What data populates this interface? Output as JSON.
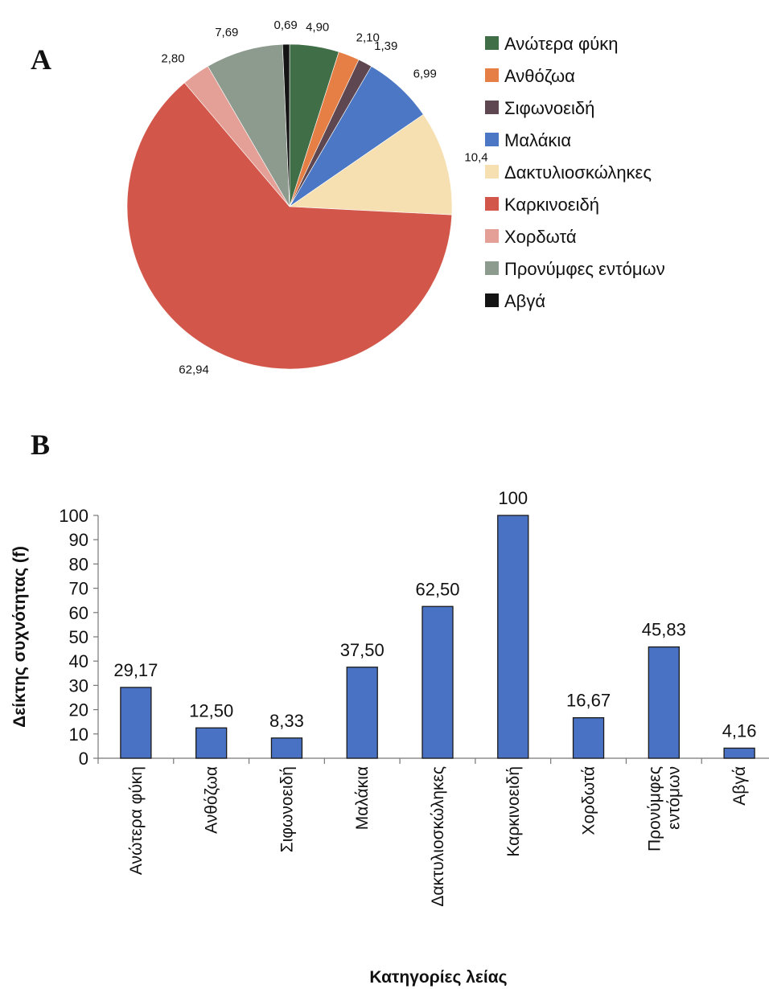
{
  "panels": {
    "a": "A",
    "b": "B"
  },
  "chart_data": [
    {
      "type": "pie",
      "title": "",
      "legend_position": "right",
      "slices": [
        {
          "name": "Ανώτερα φύκη",
          "value": 4.9,
          "label": "4,90",
          "color": "#3f6e47"
        },
        {
          "name": "Ανθόζωα",
          "value": 2.1,
          "label": "2,10",
          "color": "#e57f45"
        },
        {
          "name": "Σιφωνοειδή",
          "value": 1.39,
          "label": "1,39",
          "color": "#5e4750"
        },
        {
          "name": "Μαλάκια",
          "value": 6.99,
          "label": "6,99",
          "color": "#4b77c4"
        },
        {
          "name": "Δακτυλιοσκώληκες",
          "value": 10.4,
          "label": "10,4",
          "color": "#f6e0b2"
        },
        {
          "name": "Καρκινοειδή",
          "value": 62.94,
          "label": "62,94",
          "color": "#d2574a"
        },
        {
          "name": "Χορδωτά",
          "value": 2.8,
          "label": "2,80",
          "color": "#e4a096"
        },
        {
          "name": "Προνύμφες εντόμων",
          "value": 7.69,
          "label": "7,69",
          "color": "#8d9a8e"
        },
        {
          "name": "Αβγά",
          "value": 0.69,
          "label": "0,69",
          "color": "#141414"
        }
      ]
    },
    {
      "type": "bar",
      "title": "",
      "xlabel": "Κατηγορίες λείας",
      "ylabel": "Δείκτης συχνότητας (f)",
      "ylim": [
        0,
        100
      ],
      "yticks": [
        0,
        10,
        20,
        30,
        40,
        50,
        60,
        70,
        80,
        90,
        100
      ],
      "grid": false,
      "bar_color": "#4a72c4",
      "categories": [
        [
          "Ανώτερα φύκη"
        ],
        [
          "Ανθόζωα"
        ],
        [
          "Σιφωνοειδή"
        ],
        [
          "Μαλάκια"
        ],
        [
          "Δακτυλιοσκώληκες"
        ],
        [
          "Καρκινοειδή"
        ],
        [
          "Χορδωτά"
        ],
        [
          "Προνύμφες",
          "εντόμων"
        ],
        [
          "Αβγά"
        ]
      ],
      "values": [
        29.17,
        12.5,
        8.33,
        37.5,
        62.5,
        100,
        16.67,
        45.83,
        4.16
      ],
      "value_labels": [
        "29,17",
        "12,50",
        "8,33",
        "37,50",
        "62,50",
        "100",
        "16,67",
        "45,83",
        "4,16"
      ]
    }
  ]
}
